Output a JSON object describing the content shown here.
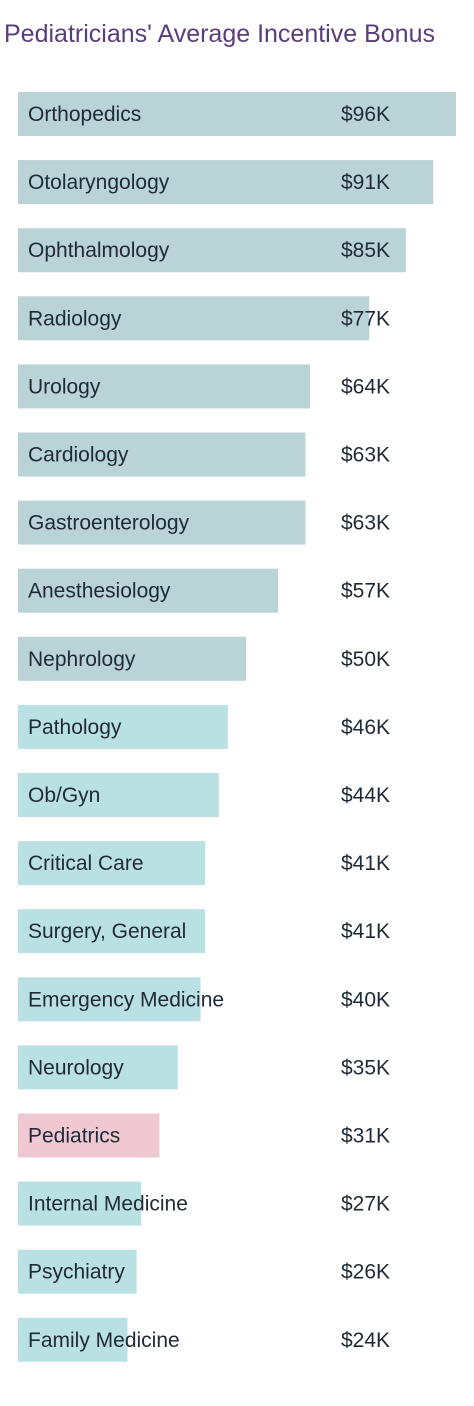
{
  "chart_data": {
    "type": "bar",
    "orientation": "horizontal",
    "title": "Pediatricians' Average Incentive Bonus",
    "categories": [
      "Orthopedics",
      "Otolaryngology",
      "Ophthalmology",
      "Radiology",
      "Urology",
      "Cardiology",
      "Gastroenterology",
      "Anesthesiology",
      "Nephrology",
      "Pathology",
      "Ob/Gyn",
      "Critical Care",
      "Surgery, General",
      "Emergency Medicine",
      "Neurology",
      "Pediatrics",
      "Internal Medicine",
      "Psychiatry",
      "Family Medicine"
    ],
    "values": [
      96,
      91,
      85,
      77,
      64,
      63,
      63,
      57,
      50,
      46,
      44,
      41,
      41,
      40,
      35,
      31,
      27,
      26,
      24
    ],
    "value_labels": [
      "$96K",
      "$91K",
      "$85K",
      "$77K",
      "$64K",
      "$63K",
      "$63K",
      "$57K",
      "$50K",
      "$46K",
      "$44K",
      "$41K",
      "$41K",
      "$40K",
      "$35K",
      "$31K",
      "$27K",
      "$26K",
      "$24K"
    ],
    "unit": "$K",
    "highlight": "Pediatrics",
    "grid": false,
    "legend": "none"
  },
  "colors": {
    "title": "#5a3d7a",
    "bar_gray_blue": "#b9d3d6",
    "bar_light_blue": "#b9e0e2",
    "bar_highlight": "#f0c8d2",
    "text": "#1f2a36",
    "highlight_text": "#c0436e"
  }
}
